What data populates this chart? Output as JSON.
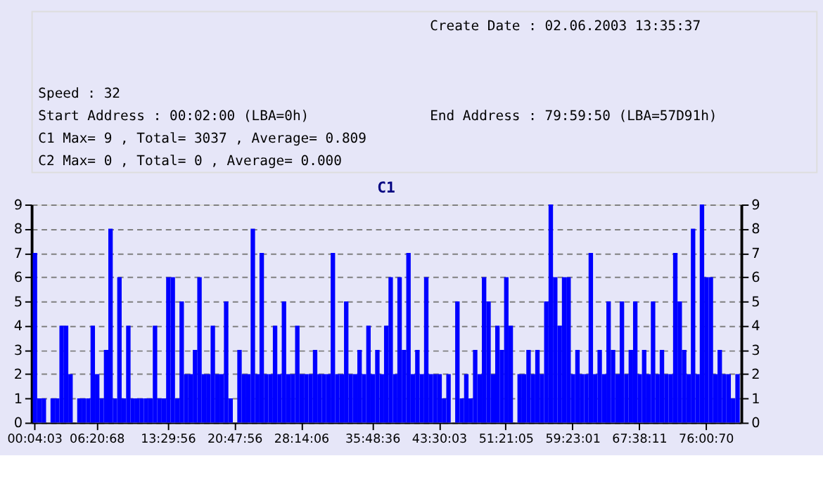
{
  "chart_data": [
    {
      "type": "other",
      "annotations": [
        "Create Date    : 02.06.2003 13:35:37",
        "Speed          : 32",
        "Start Address  : 00:02:00 (LBA=0h)",
        "End Address    : 79:59:50 (LBA=57D91h)",
        "C1 Max= 9 , Total= 3037 , Average= 0.809",
        "C2 Max= 0 , Total= 0 , Average= 0.000"
      ]
    },
    {
      "type": "bar",
      "title": "C1",
      "color": "#0000ff",
      "values": [
        7,
        1,
        1,
        0,
        1,
        1,
        4,
        4,
        2,
        0,
        1,
        1,
        1,
        4,
        2,
        1,
        3,
        8,
        1,
        6,
        1,
        4,
        1,
        1,
        1,
        1,
        1,
        4,
        1,
        1,
        6,
        6,
        1,
        5,
        2,
        2,
        3,
        6,
        2,
        2,
        4,
        2,
        2,
        5,
        1,
        0,
        3,
        2,
        2,
        8,
        2,
        7,
        2,
        2,
        4,
        2,
        5,
        2,
        2,
        4,
        2,
        2,
        2,
        3,
        2,
        2,
        2,
        7,
        2,
        2,
        5,
        2,
        2,
        3,
        2,
        4,
        2,
        3,
        2,
        4,
        6,
        2,
        6,
        3,
        7,
        2,
        3,
        2,
        6,
        2,
        2,
        2,
        1,
        2,
        0,
        5,
        1,
        2,
        1,
        3,
        2,
        6,
        5,
        2,
        4,
        3,
        6,
        4,
        0,
        2,
        2,
        3,
        2,
        3,
        2,
        5,
        9,
        6,
        4,
        6,
        6,
        2,
        3,
        2,
        2,
        7,
        2,
        3,
        2,
        5,
        3,
        2,
        5,
        2,
        3,
        5,
        2,
        3,
        2,
        5,
        2,
        3,
        2,
        2,
        7,
        5,
        3,
        2,
        8,
        2,
        9,
        6,
        6,
        2,
        3,
        2,
        2,
        1,
        2
      ],
      "categories": [
        "00:04:03",
        null,
        null,
        null,
        null,
        null,
        null,
        null,
        null,
        null,
        null,
        null,
        null,
        null,
        "06:20:68",
        null,
        null,
        null,
        null,
        null,
        null,
        null,
        null,
        null,
        null,
        null,
        null,
        null,
        null,
        null,
        "13:29:56",
        null,
        null,
        null,
        null,
        null,
        null,
        null,
        null,
        null,
        null,
        null,
        null,
        null,
        null,
        "20:47:56",
        null,
        null,
        null,
        null,
        null,
        null,
        null,
        null,
        null,
        null,
        null,
        null,
        null,
        null,
        "28:14:06",
        null,
        null,
        null,
        null,
        null,
        null,
        null,
        null,
        null,
        null,
        null,
        null,
        null,
        null,
        null,
        "35:48:36",
        null,
        null,
        null,
        null,
        null,
        null,
        null,
        null,
        null,
        null,
        null,
        null,
        null,
        null,
        "43:30:03",
        null,
        null,
        null,
        null,
        null,
        null,
        null,
        null,
        null,
        null,
        null,
        null,
        null,
        null,
        "51:21:05",
        null,
        null,
        null,
        null,
        null,
        null,
        null,
        null,
        null,
        null,
        null,
        null,
        null,
        null,
        "59:23:01",
        null,
        null,
        null,
        null,
        null,
        null,
        null,
        null,
        null,
        null,
        null,
        null,
        null,
        null,
        "67:38:11",
        null,
        null,
        null,
        null,
        null,
        null,
        null,
        null,
        null,
        null,
        null,
        null,
        null,
        null,
        "76:00:70",
        null,
        null,
        null,
        null,
        null,
        null,
        null
      ],
      "ylim": [
        0,
        9
      ],
      "yticks": [
        0,
        1,
        2,
        3,
        4,
        5,
        6,
        7,
        8,
        9
      ],
      "y2lim": [
        0,
        9
      ],
      "y2ticks": [
        0,
        1,
        2,
        3,
        4,
        5,
        6,
        7,
        8,
        9
      ],
      "grid": "y"
    }
  ]
}
